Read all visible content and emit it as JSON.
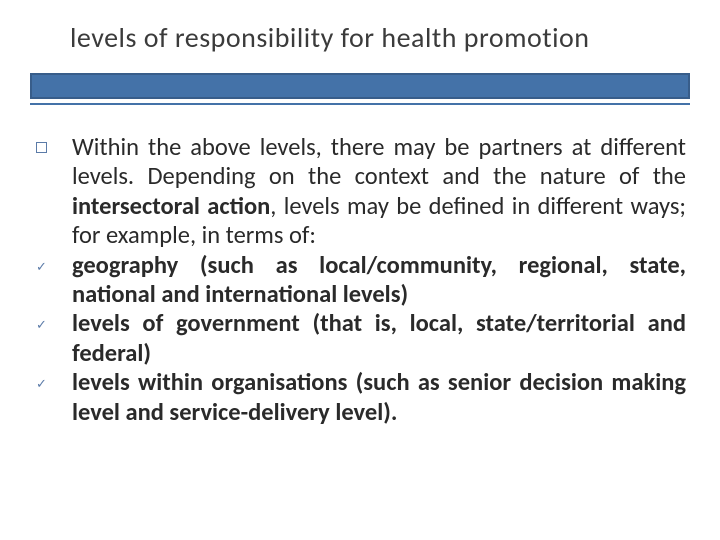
{
  "title": "levels of responsibility for health promotion",
  "accent_color": "#4472a8",
  "accent_border": "#385d8a",
  "items": [
    {
      "bullet": "square",
      "html": "Within the above levels, there may be partners at different levels. Depending on the context and the nature of the <b>intersectoral action</b>, levels may be defined in different ways; for example, in terms of:"
    },
    {
      "bullet": "check",
      "html": "<b>geography (such as local/community, regional, state, national and international levels)</b>"
    },
    {
      "bullet": "check",
      "html": "<b>levels of government (that is, local, state/territorial and federal)</b>"
    },
    {
      "bullet": "check",
      "html": "<b>levels within organisations (such as senior decision making level and service-delivery level).</b>"
    }
  ]
}
